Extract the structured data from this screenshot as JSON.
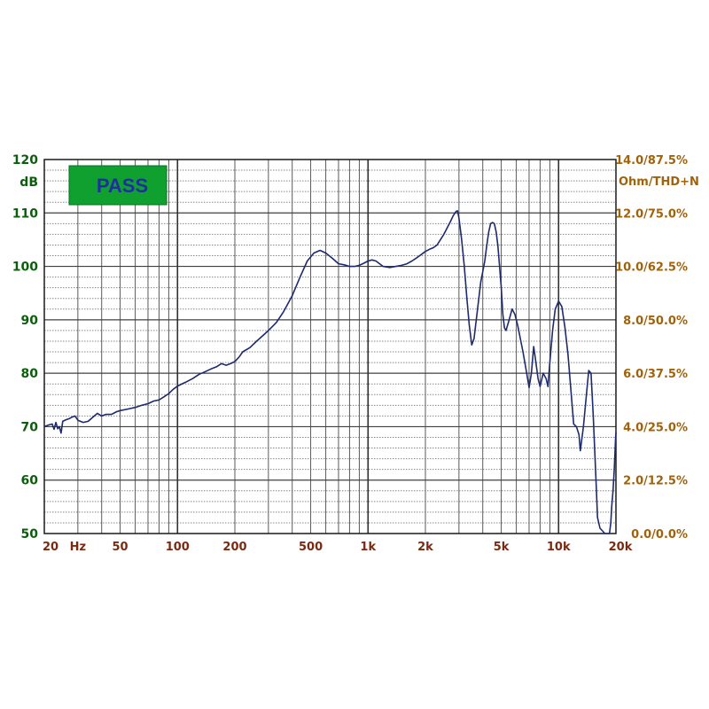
{
  "chart_data": {
    "type": "line",
    "status_badge": "PASS",
    "x_scale": "log",
    "xlim": [
      20,
      20000
    ],
    "ylim": [
      50,
      120
    ],
    "grid": true,
    "left_axis": {
      "unit": "dB",
      "ticks": [
        {
          "value": 50,
          "label": "50"
        },
        {
          "value": 60,
          "label": "60"
        },
        {
          "value": 70,
          "label": "70"
        },
        {
          "value": 80,
          "label": "80"
        },
        {
          "value": 90,
          "label": "90"
        },
        {
          "value": 100,
          "label": "100"
        },
        {
          "value": 110,
          "label": "110"
        },
        {
          "value": 120,
          "label": "120"
        }
      ]
    },
    "right_axis": {
      "unit": "Ohm/THD+N",
      "ticks": [
        {
          "value": 50,
          "label": "0.0/0.0%"
        },
        {
          "value": 60,
          "label": "2.0/12.5%"
        },
        {
          "value": 70,
          "label": "4.0/25.0%"
        },
        {
          "value": 80,
          "label": "6.0/37.5%"
        },
        {
          "value": 90,
          "label": "8.0/50.0%"
        },
        {
          "value": 100,
          "label": "10.0/62.5%"
        },
        {
          "value": 110,
          "label": "12.0/75.0%"
        },
        {
          "value": 120,
          "label": "14.0/87.5%"
        }
      ]
    },
    "x_axis": {
      "unit": "Hz",
      "unit_position": 30,
      "ticks": [
        {
          "value": 20,
          "label": "20"
        },
        {
          "value": 50,
          "label": "50"
        },
        {
          "value": 100,
          "label": "100"
        },
        {
          "value": 200,
          "label": "200"
        },
        {
          "value": 500,
          "label": "500"
        },
        {
          "value": 1000,
          "label": "1k"
        },
        {
          "value": 2000,
          "label": "2k"
        },
        {
          "value": 5000,
          "label": "5k"
        },
        {
          "value": 10000,
          "label": "10k"
        },
        {
          "value": 20000,
          "label": "20k"
        }
      ]
    },
    "series": [
      {
        "color": "#1e2a6e",
        "points": [
          [
            20,
            70
          ],
          [
            21,
            70.3
          ],
          [
            22,
            70.5
          ],
          [
            22.5,
            69.5
          ],
          [
            23,
            70.8
          ],
          [
            23.5,
            69.6
          ],
          [
            24,
            70
          ],
          [
            24.5,
            68.8
          ],
          [
            25,
            71
          ],
          [
            26,
            71.3
          ],
          [
            27,
            71.5
          ],
          [
            28,
            71.8
          ],
          [
            29,
            72
          ],
          [
            30,
            71.2
          ],
          [
            32,
            70.8
          ],
          [
            34,
            71
          ],
          [
            36,
            71.8
          ],
          [
            38,
            72.5
          ],
          [
            40,
            72
          ],
          [
            42,
            72.3
          ],
          [
            45,
            72.3
          ],
          [
            48,
            72.8
          ],
          [
            50,
            73
          ],
          [
            55,
            73.3
          ],
          [
            60,
            73.6
          ],
          [
            65,
            74
          ],
          [
            70,
            74.3
          ],
          [
            75,
            74.8
          ],
          [
            80,
            75
          ],
          [
            85,
            75.6
          ],
          [
            90,
            76.2
          ],
          [
            95,
            77
          ],
          [
            100,
            77.6
          ],
          [
            110,
            78.3
          ],
          [
            120,
            79
          ],
          [
            130,
            79.8
          ],
          [
            140,
            80.3
          ],
          [
            150,
            80.8
          ],
          [
            160,
            81.2
          ],
          [
            170,
            81.8
          ],
          [
            180,
            81.5
          ],
          [
            190,
            81.8
          ],
          [
            200,
            82.2
          ],
          [
            210,
            83
          ],
          [
            220,
            84
          ],
          [
            240,
            84.8
          ],
          [
            260,
            86
          ],
          [
            280,
            87
          ],
          [
            300,
            88
          ],
          [
            330,
            89.5
          ],
          [
            360,
            91.5
          ],
          [
            400,
            94.5
          ],
          [
            440,
            98
          ],
          [
            480,
            101
          ],
          [
            520,
            102.5
          ],
          [
            560,
            103
          ],
          [
            600,
            102.5
          ],
          [
            650,
            101.5
          ],
          [
            700,
            100.5
          ],
          [
            750,
            100.3
          ],
          [
            800,
            100
          ],
          [
            850,
            100
          ],
          [
            900,
            100.2
          ],
          [
            950,
            100.6
          ],
          [
            1000,
            101
          ],
          [
            1050,
            101.2
          ],
          [
            1100,
            101
          ],
          [
            1150,
            100.5
          ],
          [
            1200,
            100
          ],
          [
            1300,
            99.8
          ],
          [
            1400,
            100
          ],
          [
            1500,
            100.2
          ],
          [
            1600,
            100.5
          ],
          [
            1700,
            101
          ],
          [
            1800,
            101.6
          ],
          [
            1900,
            102.2
          ],
          [
            2000,
            102.8
          ],
          [
            2100,
            103.2
          ],
          [
            2200,
            103.5
          ],
          [
            2300,
            104
          ],
          [
            2400,
            105
          ],
          [
            2500,
            106
          ],
          [
            2600,
            107.2
          ],
          [
            2700,
            108.3
          ],
          [
            2800,
            109.5
          ],
          [
            2900,
            110.3
          ],
          [
            2950,
            110.4
          ],
          [
            3000,
            109
          ],
          [
            3100,
            105
          ],
          [
            3200,
            100
          ],
          [
            3300,
            94
          ],
          [
            3400,
            89
          ],
          [
            3500,
            85.3
          ],
          [
            3600,
            86.5
          ],
          [
            3700,
            90
          ],
          [
            3800,
            93.5
          ],
          [
            3900,
            97
          ],
          [
            4000,
            99
          ],
          [
            4100,
            101
          ],
          [
            4200,
            104
          ],
          [
            4300,
            106.5
          ],
          [
            4400,
            108
          ],
          [
            4500,
            108.2
          ],
          [
            4600,
            108
          ],
          [
            4700,
            106.5
          ],
          [
            4800,
            104
          ],
          [
            4900,
            100
          ],
          [
            5000,
            96
          ],
          [
            5100,
            91
          ],
          [
            5200,
            88.5
          ],
          [
            5300,
            88
          ],
          [
            5500,
            90
          ],
          [
            5700,
            92
          ],
          [
            5900,
            91
          ],
          [
            6100,
            89
          ],
          [
            6300,
            86.5
          ],
          [
            6500,
            84
          ],
          [
            6800,
            80
          ],
          [
            7000,
            77.3
          ],
          [
            7200,
            80
          ],
          [
            7400,
            85
          ],
          [
            7600,
            82
          ],
          [
            7800,
            79
          ],
          [
            8000,
            77.5
          ],
          [
            8300,
            80
          ],
          [
            8600,
            79
          ],
          [
            8800,
            77.5
          ],
          [
            9000,
            82
          ],
          [
            9300,
            88
          ],
          [
            9600,
            92
          ],
          [
            10000,
            93.5
          ],
          [
            10400,
            92.5
          ],
          [
            10800,
            88.5
          ],
          [
            11200,
            83.5
          ],
          [
            11600,
            77
          ],
          [
            12000,
            70.5
          ],
          [
            12400,
            70
          ],
          [
            12800,
            68.5
          ],
          [
            13000,
            65.5
          ],
          [
            13500,
            70
          ],
          [
            14000,
            76
          ],
          [
            14400,
            80.5
          ],
          [
            14800,
            80
          ],
          [
            15200,
            72
          ],
          [
            15500,
            65
          ],
          [
            15800,
            58
          ],
          [
            16000,
            53
          ],
          [
            16500,
            51
          ],
          [
            17000,
            50.5
          ],
          [
            17500,
            50
          ],
          [
            18000,
            50
          ],
          [
            18500,
            50
          ],
          [
            18800,
            52
          ],
          [
            19000,
            55
          ],
          [
            19300,
            58
          ],
          [
            19600,
            62
          ],
          [
            19900,
            67.5
          ],
          [
            20000,
            69
          ]
        ]
      }
    ]
  }
}
